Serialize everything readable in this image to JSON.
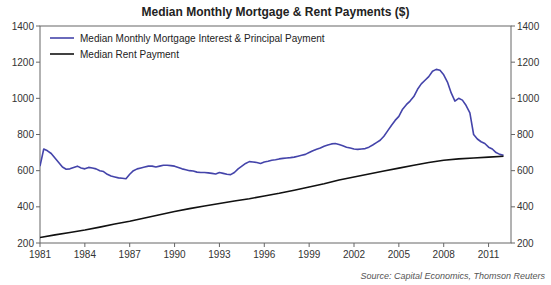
{
  "chart_data": {
    "type": "line",
    "title": "Median Monthly Mortgage & Rent Payments ($)",
    "annotations": [
      "Source: Capital Economics, Thomson Reuters"
    ],
    "xlim": [
      1981,
      2012.5
    ],
    "xticks": [
      1981,
      1984,
      1987,
      1990,
      1993,
      1996,
      1999,
      2002,
      2005,
      2008,
      2011
    ],
    "ylim": [
      200,
      1400
    ],
    "yticks": [
      200,
      400,
      600,
      800,
      1000,
      1200,
      1400
    ],
    "y2lim": [
      200,
      1400
    ],
    "y2ticks": [
      200,
      400,
      600,
      800,
      1000,
      1200,
      1400
    ],
    "grid": false,
    "legend": "upper left",
    "series": [
      {
        "name": "Median Monthly Mortgage Interest & Principal Payment",
        "color": "#4444aa",
        "x": [
          1981,
          1981.25,
          1981.5,
          1981.75,
          1982,
          1982.25,
          1982.5,
          1982.75,
          1983,
          1983.25,
          1983.5,
          1983.75,
          1984,
          1984.25,
          1984.5,
          1984.75,
          1985,
          1985.25,
          1985.5,
          1985.75,
          1986,
          1986.25,
          1986.5,
          1986.75,
          1987,
          1987.25,
          1987.5,
          1987.75,
          1988,
          1988.25,
          1988.5,
          1988.75,
          1989,
          1989.25,
          1989.5,
          1989.75,
          1990,
          1990.25,
          1990.5,
          1990.75,
          1991,
          1991.25,
          1991.5,
          1991.75,
          1992,
          1992.25,
          1992.5,
          1992.75,
          1993,
          1993.25,
          1993.5,
          1993.75,
          1994,
          1994.25,
          1994.5,
          1994.75,
          1995,
          1995.25,
          1995.5,
          1995.75,
          1996,
          1996.25,
          1996.5,
          1996.75,
          1997,
          1997.25,
          1997.5,
          1997.75,
          1998,
          1998.25,
          1998.5,
          1998.75,
          1999,
          1999.25,
          1999.5,
          1999.75,
          2000,
          2000.25,
          2000.5,
          2000.75,
          2001,
          2001.25,
          2001.5,
          2001.75,
          2002,
          2002.25,
          2002.5,
          2002.75,
          2003,
          2003.25,
          2003.5,
          2003.75,
          2004,
          2004.25,
          2004.5,
          2004.75,
          2005,
          2005.25,
          2005.5,
          2005.75,
          2006,
          2006.25,
          2006.5,
          2006.75,
          2007,
          2007.25,
          2007.5,
          2007.75,
          2008,
          2008.25,
          2008.5,
          2008.75,
          2009,
          2009.25,
          2009.5,
          2009.75,
          2010,
          2010.25,
          2010.5,
          2010.75,
          2011,
          2011.25,
          2011.5,
          2011.75,
          2012
        ],
        "values": [
          625,
          720,
          710,
          695,
          670,
          645,
          620,
          608,
          610,
          618,
          625,
          615,
          610,
          618,
          615,
          610,
          600,
          595,
          580,
          570,
          565,
          560,
          558,
          555,
          580,
          600,
          610,
          615,
          620,
          625,
          625,
          620,
          625,
          630,
          630,
          628,
          625,
          618,
          610,
          605,
          600,
          598,
          592,
          590,
          590,
          588,
          585,
          582,
          590,
          585,
          580,
          578,
          590,
          610,
          625,
          640,
          650,
          648,
          645,
          640,
          648,
          652,
          658,
          660,
          665,
          668,
          670,
          672,
          675,
          680,
          685,
          690,
          700,
          710,
          718,
          725,
          735,
          742,
          748,
          750,
          745,
          738,
          730,
          725,
          720,
          718,
          720,
          722,
          730,
          742,
          755,
          768,
          790,
          820,
          850,
          878,
          900,
          940,
          965,
          985,
          1010,
          1050,
          1080,
          1100,
          1120,
          1150,
          1160,
          1155,
          1130,
          1090,
          1030,
          985,
          1000,
          990,
          960,
          920,
          800,
          775,
          760,
          750,
          730,
          720,
          700,
          690,
          685
        ]
      },
      {
        "name": "Median Rent Payment",
        "color": "#111111",
        "x": [
          1981,
          1982,
          1983,
          1984,
          1985,
          1986,
          1987,
          1988,
          1989,
          1990,
          1991,
          1992,
          1993,
          1994,
          1995,
          1996,
          1997,
          1998,
          1999,
          2000,
          2001,
          2002,
          2003,
          2004,
          2005,
          2006,
          2007,
          2008,
          2009,
          2010,
          2011,
          2012
        ],
        "values": [
          230,
          245,
          258,
          272,
          288,
          305,
          320,
          338,
          356,
          374,
          390,
          405,
          418,
          432,
          445,
          460,
          475,
          492,
          510,
          528,
          548,
          565,
          582,
          598,
          614,
          630,
          645,
          658,
          665,
          670,
          675,
          680
        ]
      }
    ]
  }
}
